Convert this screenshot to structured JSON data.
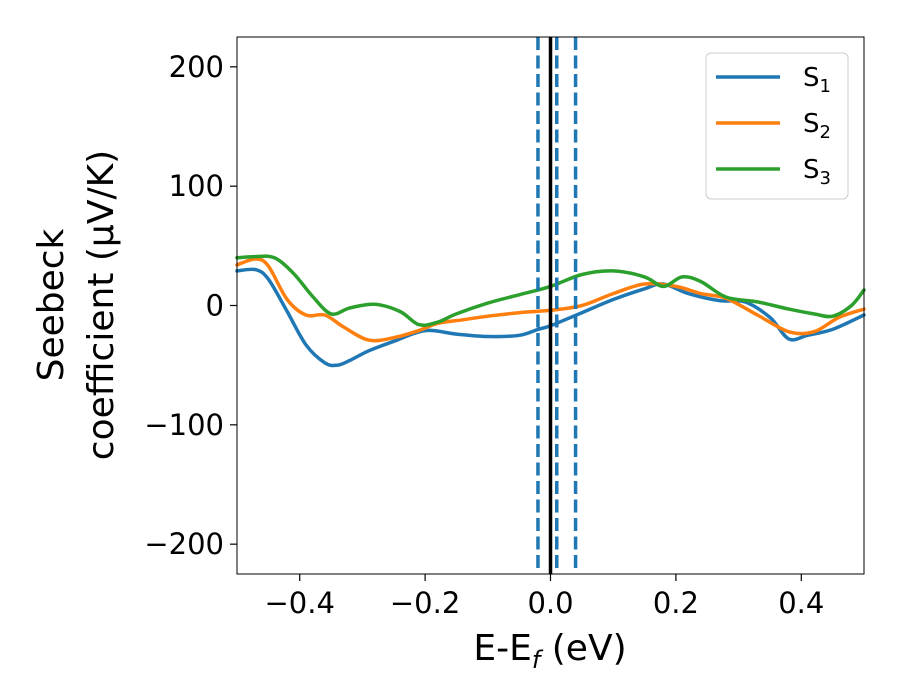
{
  "chart_data": {
    "type": "line",
    "xlabel": "E-E",
    "xlabel_sub": "f",
    "xlabel_unit": " (eV)",
    "ylabel_line1": "Seebeck",
    "ylabel_line2": "coefficient  (μV/K)",
    "xlim": [
      -0.5,
      0.5
    ],
    "ylim": [
      -225,
      225
    ],
    "x_ticks": [
      -0.4,
      -0.2,
      0.0,
      0.2,
      0.4
    ],
    "x_tick_labels": [
      "−0.4",
      "−0.2",
      "0.0",
      "0.2",
      "0.4"
    ],
    "y_ticks": [
      200,
      100,
      0,
      -100,
      -200
    ],
    "y_tick_labels": [
      "200",
      "100",
      "0",
      "−100",
      "−200"
    ],
    "grid": false,
    "legend_position": "top-right",
    "vlines": [
      {
        "x": 0.0,
        "style": "solid",
        "color": "#000000"
      },
      {
        "x": -0.02,
        "style": "dashed",
        "color": "#1f77b4"
      },
      {
        "x": 0.01,
        "style": "dashed",
        "color": "#1f77b4"
      },
      {
        "x": 0.04,
        "style": "dashed",
        "color": "#1f77b4"
      }
    ],
    "series": [
      {
        "name": "S",
        "sub": "1",
        "color": "#1f77b4",
        "x": [
          -0.5,
          -0.47,
          -0.45,
          -0.42,
          -0.39,
          -0.36,
          -0.34,
          -0.32,
          -0.29,
          -0.25,
          -0.2,
          -0.15,
          -0.1,
          -0.05,
          -0.02,
          0.0,
          0.05,
          0.1,
          0.15,
          0.18,
          0.22,
          0.27,
          0.31,
          0.35,
          0.38,
          0.41,
          0.45,
          0.5
        ],
        "y": [
          29,
          30,
          22,
          -5,
          -33,
          -48,
          -50,
          -46,
          -38,
          -30,
          -21,
          -24,
          -26,
          -25,
          -20,
          -17,
          -6,
          5,
          14,
          18,
          10,
          4,
          3,
          -10,
          -28,
          -25,
          -20,
          -8
        ]
      },
      {
        "name": "S",
        "sub": "2",
        "color": "#ff7f0e",
        "x": [
          -0.5,
          -0.47,
          -0.45,
          -0.42,
          -0.39,
          -0.36,
          -0.33,
          -0.29,
          -0.25,
          -0.21,
          -0.18,
          -0.14,
          -0.1,
          -0.05,
          0.0,
          0.05,
          0.1,
          0.15,
          0.2,
          0.24,
          0.28,
          0.33,
          0.38,
          0.42,
          0.46,
          0.5
        ],
        "y": [
          34,
          39,
          33,
          5,
          -8,
          -8,
          -18,
          -29,
          -27,
          -21,
          -15,
          -12,
          -9,
          -6,
          -4,
          0,
          10,
          18,
          16,
          10,
          6,
          -8,
          -22,
          -22,
          -10,
          -3
        ]
      },
      {
        "name": "S",
        "sub": "3",
        "color": "#2ca02c",
        "x": [
          -0.5,
          -0.47,
          -0.44,
          -0.41,
          -0.38,
          -0.35,
          -0.32,
          -0.28,
          -0.24,
          -0.21,
          -0.18,
          -0.15,
          -0.1,
          -0.05,
          0.0,
          0.05,
          0.1,
          0.15,
          0.18,
          0.21,
          0.24,
          0.28,
          0.33,
          0.38,
          0.42,
          0.45,
          0.48,
          0.5
        ],
        "y": [
          40,
          41,
          40,
          27,
          8,
          -7,
          -2,
          1,
          -5,
          -16,
          -14,
          -7,
          2,
          9,
          16,
          26,
          29,
          24,
          16,
          24,
          20,
          7,
          3,
          -3,
          -7,
          -9,
          0,
          13
        ]
      }
    ]
  }
}
